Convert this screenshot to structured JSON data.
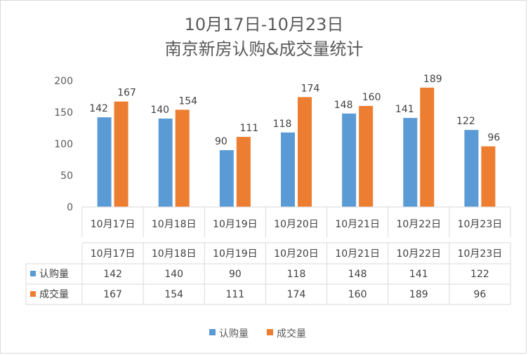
{
  "chart_data": {
    "type": "bar",
    "title": "10月17日-10月23日",
    "subtitle": "南京新房认购&成交量统计",
    "categories": [
      "10月17日",
      "10月18日",
      "10月19日",
      "10月20日",
      "10月21日",
      "10月22日",
      "10月23日"
    ],
    "series": [
      {
        "name": "认购量",
        "values": [
          142,
          140,
          90,
          118,
          148,
          141,
          122
        ],
        "color": "#5b9bd5"
      },
      {
        "name": "成交量",
        "values": [
          167,
          154,
          111,
          174,
          160,
          189,
          96
        ],
        "color": "#ed7d31"
      }
    ],
    "ylim": [
      0,
      200
    ],
    "yticks": [
      0,
      50,
      100,
      150,
      200
    ],
    "xlabel": "",
    "ylabel": "",
    "grid": false,
    "legend": "bottom",
    "data_table": true
  }
}
